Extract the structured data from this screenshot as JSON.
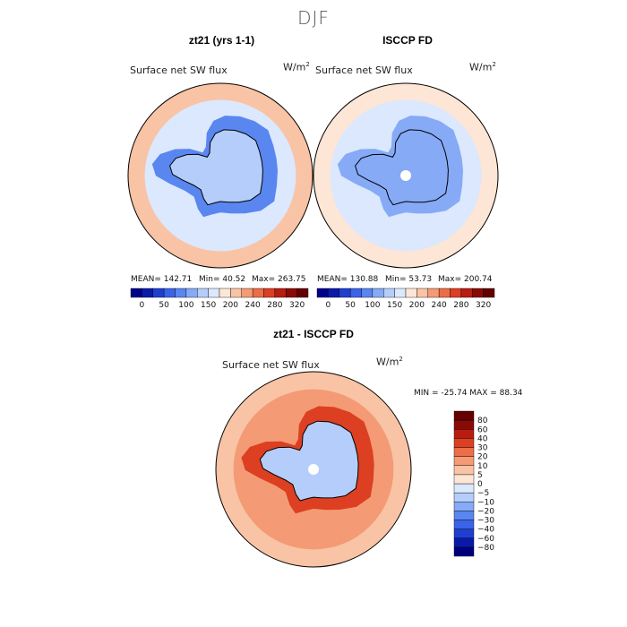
{
  "figure": {
    "title": "DJF"
  },
  "chart_data": [
    {
      "type": "heatmap",
      "projection": "south-polar-stereographic",
      "title": "zt21 (yrs 1-1)",
      "field_label": "Surface net SW flux",
      "units_base": "W/m",
      "units_exp": "2",
      "stats": {
        "mean": 142.71,
        "min": 40.52,
        "max": 263.75
      },
      "stats_text": {
        "mean": "MEAN= 142.71",
        "min": "Min=  40.52",
        "max": "Max= 263.75"
      },
      "colorbar": {
        "orientation": "horizontal",
        "levels": [
          0,
          25,
          50,
          75,
          100,
          125,
          150,
          175,
          200,
          220,
          240,
          260,
          280,
          300,
          320
        ],
        "tick_labels": [
          "0",
          "50",
          "100",
          "150",
          "200",
          "240",
          "280",
          "320"
        ],
        "colors": [
          "#00008c",
          "#0a1aa8",
          "#1f3fd0",
          "#3b63e8",
          "#5a86f0",
          "#86aaf6",
          "#b4cdfa",
          "#dbe8fd",
          "#fde6d6",
          "#f9c3a5",
          "#f49a74",
          "#ec6d47",
          "#dc3f22",
          "#b81d10",
          "#8a0a06",
          "#640000"
        ]
      },
      "regions": {
        "antarctica": 145,
        "ocean_high_lat": 95,
        "ocean_mid": 160,
        "ocean_outer": 200
      }
    },
    {
      "type": "heatmap",
      "projection": "south-polar-stereographic",
      "title": "ISCCP FD",
      "field_label": "Surface net SW flux",
      "units_base": "W/m",
      "units_exp": "2",
      "stats": {
        "mean": 130.88,
        "min": 53.73,
        "max": 200.74
      },
      "stats_text": {
        "mean": "MEAN= 130.88",
        "min": "Min=  53.73",
        "max": "Max= 200.74"
      },
      "colorbar": {
        "orientation": "horizontal",
        "levels": [
          0,
          25,
          50,
          75,
          100,
          125,
          150,
          175,
          200,
          220,
          240,
          260,
          280,
          300,
          320
        ],
        "tick_labels": [
          "0",
          "50",
          "100",
          "150",
          "200",
          "240",
          "280",
          "320"
        ],
        "colors": [
          "#00008c",
          "#0a1aa8",
          "#1f3fd0",
          "#3b63e8",
          "#5a86f0",
          "#86aaf6",
          "#b4cdfa",
          "#dbe8fd",
          "#fde6d6",
          "#f9c3a5",
          "#f49a74",
          "#ec6d47",
          "#dc3f22",
          "#b81d10",
          "#8a0a06",
          "#640000"
        ]
      },
      "regions": {
        "antarctica": 115,
        "ocean_high_lat": 110,
        "ocean_mid": 165,
        "ocean_outer": 185
      }
    },
    {
      "type": "heatmap",
      "projection": "south-polar-stereographic",
      "title": "zt21 - ISCCP FD",
      "field_label": "Surface net SW flux",
      "units_base": "W/m",
      "units_exp": "2",
      "stats": {
        "min": -25.74,
        "max": 88.34
      },
      "stats_text": {
        "range": "MIN = -25.74 MAX =  88.34"
      },
      "colorbar": {
        "orientation": "vertical",
        "levels": [
          -80,
          -60,
          -40,
          -30,
          -20,
          -10,
          -5,
          0,
          5,
          10,
          20,
          30,
          40,
          60,
          80
        ],
        "tick_labels": [
          "−80",
          "−60",
          "−40",
          "−30",
          "−20",
          "−10",
          "−5",
          "0",
          "5",
          "10",
          "20",
          "30",
          "40",
          "60",
          "80"
        ],
        "colors": [
          "#00007a",
          "#0a1aa8",
          "#1f3fd0",
          "#3b63e8",
          "#5a86f0",
          "#86aaf6",
          "#b4cdfa",
          "#dbe8fd",
          "#fde6d6",
          "#f9c3a5",
          "#f49a74",
          "#ec6d47",
          "#dc3f22",
          "#b81d10",
          "#8a0a06",
          "#640000"
        ]
      },
      "regions": {
        "antarctica": -8,
        "ocean_high_lat": 35,
        "ocean_mid": 18,
        "ocean_outer": 8
      }
    }
  ]
}
